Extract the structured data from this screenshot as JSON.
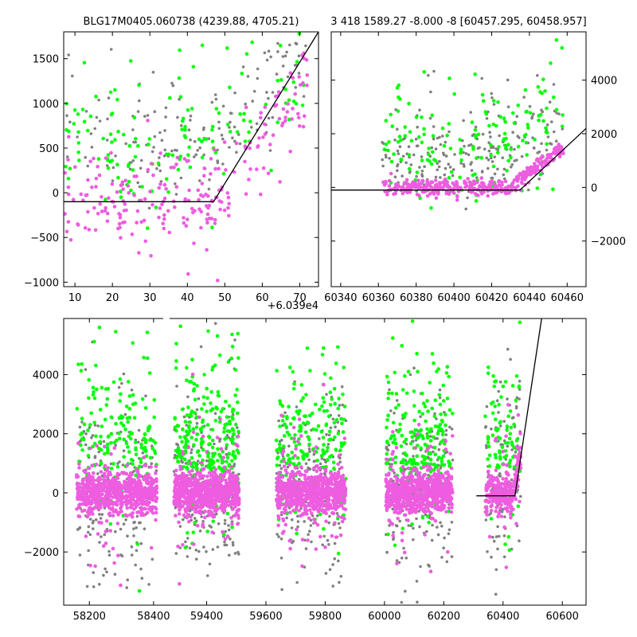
{
  "chart_data": [
    {
      "type": "scatter",
      "title": "BLG17M0405.060738 (4239.88, 4705.21)",
      "x_offset_label": "+6.039e4",
      "xlim": [
        7,
        75
      ],
      "ylim": [
        -1050,
        1800
      ],
      "x_ticks": [
        10,
        20,
        30,
        40,
        50,
        60,
        70
      ],
      "y_ticks": [
        -1000,
        -500,
        0,
        500,
        1000,
        1500
      ],
      "colors": {
        "magenta": "#ee5ce0",
        "green": "#00ff00",
        "gray": "#808080",
        "model": "#000000"
      },
      "series": [
        {
          "color": "magenta",
          "n": 230,
          "x_range": [
            7,
            72
          ],
          "base_level": -100,
          "rise_start": 47,
          "rise_slope": 55,
          "scatter": 260
        },
        {
          "color": "green",
          "n": 140,
          "x_range": [
            7,
            72
          ],
          "base_level": 250,
          "rise_start": 47,
          "rise_slope": 40,
          "scatter": 500
        },
        {
          "color": "gray",
          "n": 170,
          "x_range": [
            7,
            72
          ],
          "base_level": 300,
          "rise_start": 47,
          "rise_slope": 40,
          "scatter": 450
        }
      ],
      "model_line": [
        [
          7,
          -100
        ],
        [
          47,
          -100
        ],
        [
          75,
          1800
        ]
      ]
    },
    {
      "type": "scatter",
      "title": "3 418 1589.27 -8.000 -8 [60457.295, 60458.957]",
      "xlim": [
        60335,
        60470
      ],
      "ylim": [
        -3700,
        5800
      ],
      "x_ticks": [
        60340,
        60360,
        60380,
        60400,
        60420,
        60440,
        60460
      ],
      "y_ticks": [
        -2000,
        0,
        2000,
        4000
      ],
      "y_axis_side": "right",
      "colors": {
        "magenta": "#ee5ce0",
        "green": "#00ff00",
        "gray": "#808080",
        "model": "#000000"
      },
      "series": [
        {
          "color": "magenta",
          "n": 380,
          "x_range": [
            60362,
            60458
          ],
          "base_level": 0,
          "rise_start": 60430,
          "rise_slope": 55,
          "scatter": 150
        },
        {
          "color": "green",
          "n": 160,
          "x_range": [
            60362,
            60458
          ],
          "base_level": 800,
          "rise_start": 60430,
          "rise_slope": 40,
          "scatter": 1600
        },
        {
          "color": "gray",
          "n": 220,
          "x_range": [
            60362,
            60458
          ],
          "base_level": 600,
          "rise_start": 60430,
          "rise_slope": 40,
          "scatter": 1200
        }
      ],
      "model_line": [
        [
          60335,
          -100
        ],
        [
          60435,
          -100
        ],
        [
          60470,
          2200
        ]
      ]
    },
    {
      "type": "scatter",
      "xlim": [
        58120,
        60680
      ],
      "ylim": [
        -3800,
        5900
      ],
      "x_ticks": [
        58200,
        58400,
        59400,
        59600,
        59800,
        60000,
        60200,
        60400,
        60600
      ],
      "y_ticks": [
        -2000,
        0,
        2000,
        4000
      ],
      "x_axis_break": [
        58435,
        59275
      ],
      "colors": {
        "magenta": "#ee5ce0",
        "green": "#00ff00",
        "gray": "#808080",
        "model": "#000000"
      },
      "seasons": [
        {
          "x_range": [
            58160,
            58410
          ],
          "n_magenta": 700,
          "n_green": 170,
          "n_gray": 190
        },
        {
          "x_range": [
            59290,
            59510
          ],
          "n_magenta": 700,
          "n_green": 260,
          "n_gray": 220
        },
        {
          "x_range": [
            59635,
            59870
          ],
          "n_magenta": 700,
          "n_green": 200,
          "n_gray": 220
        },
        {
          "x_range": [
            60005,
            60230
          ],
          "n_magenta": 700,
          "n_green": 210,
          "n_gray": 220
        },
        {
          "x_range": [
            60340,
            60460
          ],
          "n_magenta": 260,
          "n_green": 90,
          "n_gray": 110
        }
      ],
      "model_line": [
        [
          60310,
          -100
        ],
        [
          60440,
          -100
        ],
        [
          60530,
          5900
        ]
      ]
    }
  ]
}
